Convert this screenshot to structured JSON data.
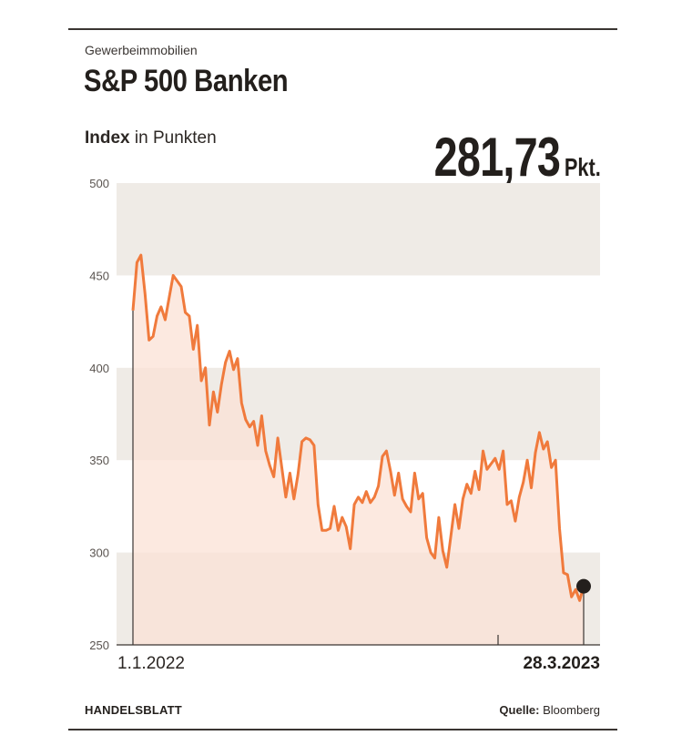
{
  "header": {
    "kicker": "Gewerbeimmobilien",
    "title": "S&P 500 Banken",
    "subtitle_bold": "Index",
    "subtitle_rest": "in Punkten",
    "current_value": "281,73",
    "current_unit": "Pkt."
  },
  "footer": {
    "publisher": "HANDELSBLATT",
    "source_label": "Quelle:",
    "source_value": "Bloomberg"
  },
  "colors": {
    "line": "#f07a3c",
    "area": "#fbe1d6",
    "band": "#efebe6",
    "text": "#231f1c"
  },
  "chart_data": {
    "type": "line",
    "title": "S&P 500 Banken",
    "ylabel": "Index in Punkten",
    "ylim": [
      250,
      500
    ],
    "yticks": [
      250,
      300,
      350,
      400,
      450,
      500
    ],
    "x_start_label": "1.1.2022",
    "x_end_label": "28.3.2023",
    "grid": "alternating horizontal bands",
    "last_value": 281.73,
    "series": [
      {
        "values": [
          431,
          457,
          461,
          440,
          415,
          417,
          428,
          433,
          426,
          438,
          450,
          447,
          444,
          430,
          428,
          410,
          423,
          393,
          400,
          369,
          387,
          376,
          391,
          403,
          409,
          399,
          405,
          381,
          372,
          368,
          371,
          358,
          374,
          355,
          347,
          341,
          362,
          346,
          330,
          343,
          329,
          342,
          360,
          362,
          361,
          358,
          326,
          312,
          312,
          313,
          325,
          312,
          319,
          314,
          302,
          326,
          330,
          327,
          333,
          327,
          330,
          336,
          352,
          355,
          344,
          331,
          343,
          329,
          325,
          322,
          343,
          329,
          332,
          308,
          300,
          297,
          319,
          301,
          292,
          309,
          326,
          313,
          329,
          337,
          332,
          344,
          334,
          355,
          345,
          348,
          351,
          345,
          355,
          326,
          328,
          317,
          330,
          338,
          350,
          335,
          354,
          365,
          356,
          360,
          346,
          350,
          313,
          289,
          288,
          276,
          280,
          274,
          281.73
        ]
      }
    ]
  }
}
